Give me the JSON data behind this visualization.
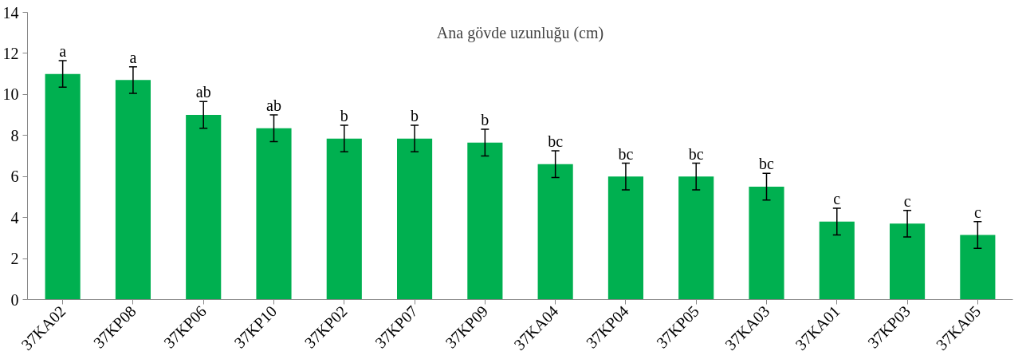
{
  "chart_data": {
    "type": "bar",
    "title": "Ana gövde uzunluğu (cm)",
    "categories": [
      "37KA02",
      "37KP08",
      "37KP06",
      "37KP10",
      "37KP02",
      "37KP07",
      "37KP09",
      "37KA04",
      "37KP04",
      "37KP05",
      "37KA03",
      "37KA01",
      "37KP03",
      "37KA05"
    ],
    "values": [
      11.0,
      10.7,
      9.0,
      8.35,
      7.85,
      7.85,
      7.65,
      6.6,
      6.0,
      6.0,
      5.5,
      3.8,
      3.7,
      3.15
    ],
    "errors": [
      0.65,
      0.65,
      0.65,
      0.65,
      0.65,
      0.65,
      0.65,
      0.65,
      0.65,
      0.65,
      0.65,
      0.65,
      0.65,
      0.65
    ],
    "color": "#00b050",
    "ylim": [
      0,
      14
    ],
    "yticks": [
      0,
      2,
      4,
      6,
      8,
      10,
      12,
      14
    ],
    "grid": false,
    "annotations": [
      {
        "text": "a",
        "x": "37KA02",
        "y": 11.65
      },
      {
        "text": "a",
        "x": "37KP08",
        "y": 11.35
      },
      {
        "text": "ab",
        "x": "37KP06",
        "y": 9.65
      },
      {
        "text": "ab",
        "x": "37KP10",
        "y": 9.0
      },
      {
        "text": "b",
        "x": "37KP02",
        "y": 8.5
      },
      {
        "text": "b",
        "x": "37KP07",
        "y": 8.5
      },
      {
        "text": "b",
        "x": "37KP09",
        "y": 8.3
      },
      {
        "text": "bc",
        "x": "37KA04",
        "y": 7.25
      },
      {
        "text": "bc",
        "x": "37KP04",
        "y": 6.65
      },
      {
        "text": "bc",
        "x": "37KP05",
        "y": 6.65
      },
      {
        "text": "bc",
        "x": "37KA03",
        "y": 6.15
      },
      {
        "text": "c",
        "x": "37KA01",
        "y": 4.45
      },
      {
        "text": "c",
        "x": "37KP03",
        "y": 4.35
      },
      {
        "text": "c",
        "x": "37KA05",
        "y": 3.8
      }
    ]
  }
}
